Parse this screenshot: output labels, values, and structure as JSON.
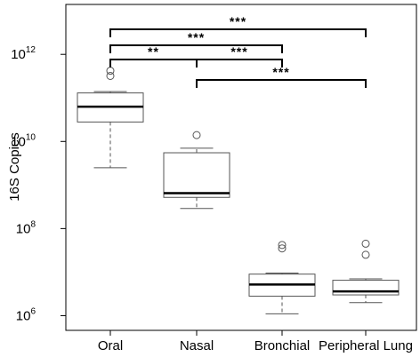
{
  "chart_data": {
    "type": "box",
    "ylabel": "16S Copies",
    "yscale": "log10",
    "ylim": [
      460000.0,
      14000000000000.0
    ],
    "yticks": [
      {
        "base": "10",
        "exp": "6",
        "value": 1000000.0
      },
      {
        "base": "10",
        "exp": "8",
        "value": 100000000.0
      },
      {
        "base": "10",
        "exp": "10",
        "value": 10000000000.0
      },
      {
        "base": "10",
        "exp": "12",
        "value": 1000000000000.0
      }
    ],
    "categories": [
      "Oral",
      "Nasal",
      "Bronchial",
      "Peripheral Lung"
    ],
    "boxes": [
      {
        "whisker_low": 2500000000.0,
        "q1": 28000000000.0,
        "median": 63000000000.0,
        "q3": 130000000000.0,
        "whisker_high": 140000000000.0,
        "outliers": [
          320000000000.0,
          420000000000.0
        ]
      },
      {
        "whisker_low": 290000000.0,
        "q1": 520000000.0,
        "median": 650000000.0,
        "q3": 5500000000.0,
        "whisker_high": 7000000000.0,
        "outliers": [
          14000000000.0
        ]
      },
      {
        "whisker_low": 1100000.0,
        "q1": 2800000.0,
        "median": 5200000.0,
        "q3": 9000000.0,
        "whisker_high": 9500000.0,
        "outliers": [
          35000000.0,
          42000000.0
        ]
      },
      {
        "whisker_low": 2000000.0,
        "q1": 3000000.0,
        "median": 3600000.0,
        "q3": 6500000.0,
        "whisker_high": 7000000.0,
        "outliers": [
          25000000.0,
          45000000.0
        ]
      }
    ],
    "significance": [
      {
        "from": 0,
        "to": 3,
        "label": "***"
      },
      {
        "from": 0,
        "to": 2,
        "label": "***"
      },
      {
        "from": 0,
        "to": 1,
        "label": "**"
      },
      {
        "from": 1,
        "to": 2,
        "label": "***"
      },
      {
        "from": 1,
        "to": 3,
        "label": "***"
      }
    ],
    "grid": false,
    "legend": "none"
  }
}
